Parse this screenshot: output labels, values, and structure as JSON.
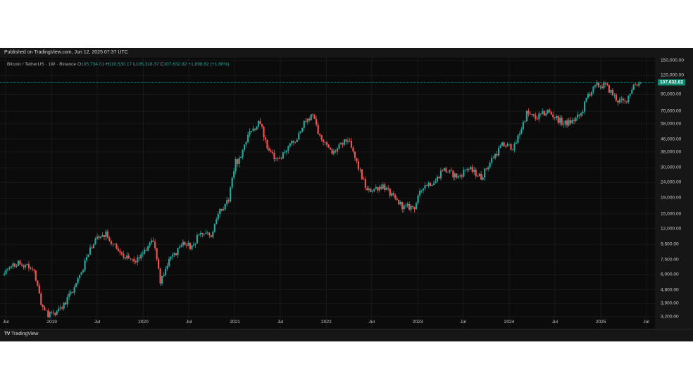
{
  "header": {
    "published": "Published on TradingView.com, Jun 12, 2025 07:37 UTC"
  },
  "legend": {
    "symbol": "Bitcoin / TetherUS · 1W · Binance",
    "open_label": "O",
    "open": "105,734.01",
    "high_label": "H",
    "high": "110,530.17",
    "low_label": "L",
    "low": "105,318.37",
    "close_label": "C",
    "close": "107,632.82",
    "change": "+1,898.82 (+1.80%)"
  },
  "last_price_label": "107,632.82",
  "footer": {
    "brand": "TradingView",
    "logo_text": "TV"
  },
  "colors": {
    "up": "#26a69a",
    "down": "#ef5350",
    "background": "#0b0b0b",
    "price_line": "#26a69a"
  },
  "chart_data": {
    "type": "candlestick",
    "title": "",
    "yscale": "log",
    "ylim": [
      2700,
      150000
    ],
    "last_price": 107632.82,
    "y_tick_labels": [
      "150,000.00",
      "120,000.00",
      "90,000.00",
      "70,000.00",
      "58,000.00",
      "46,000.00",
      "38,000.00",
      "30,000.00",
      "24,000.00",
      "19,000.00",
      "15,000.00",
      "12,000.00",
      "9,500.00",
      "7,500.00",
      "6,000.00",
      "4,800.00",
      "3,900.00",
      "3,200.00"
    ],
    "y_tick_values": [
      150000,
      120000,
      90000,
      70000,
      58000,
      46000,
      38000,
      30000,
      24000,
      19000,
      15000,
      12000,
      9500,
      7500,
      6000,
      4800,
      3900,
      3200
    ],
    "x_tick_labels": [
      "Jul",
      "2019",
      "Jul",
      "2020",
      "Jul",
      "2021",
      "Jul",
      "2022",
      "Jul",
      "2023",
      "Jul",
      "2024",
      "Jul",
      "2025",
      "Jul"
    ],
    "x_tick_dates": [
      "2018-07-01",
      "2019-01-01",
      "2019-07-01",
      "2020-01-01",
      "2020-07-01",
      "2021-01-01",
      "2021-07-01",
      "2022-01-01",
      "2022-07-01",
      "2023-01-01",
      "2023-07-01",
      "2024-01-01",
      "2024-07-01",
      "2025-01-01",
      "2025-07-01"
    ],
    "series": {
      "start_week": "2018-06-25",
      "anchor_dates": [
        "2018-06-25",
        "2018-08-20",
        "2018-10-22",
        "2018-11-19",
        "2018-12-17",
        "2019-02-11",
        "2019-04-08",
        "2019-06-24",
        "2019-08-05",
        "2019-10-07",
        "2019-11-25",
        "2020-02-10",
        "2020-03-09",
        "2020-04-06",
        "2020-06-01",
        "2020-07-13",
        "2020-08-17",
        "2020-09-28",
        "2020-11-02",
        "2020-12-07",
        "2021-01-04",
        "2021-01-25",
        "2021-02-22",
        "2021-04-12",
        "2021-05-17",
        "2021-06-28",
        "2021-07-26",
        "2021-09-06",
        "2021-10-04",
        "2021-11-08",
        "2021-12-06",
        "2022-01-24",
        "2022-03-28",
        "2022-05-09",
        "2022-06-13",
        "2022-08-15",
        "2022-09-26",
        "2022-11-07",
        "2022-12-19",
        "2023-01-23",
        "2023-03-13",
        "2023-04-10",
        "2023-06-12",
        "2023-07-17",
        "2023-09-11",
        "2023-10-23",
        "2023-12-04",
        "2024-01-22",
        "2024-03-11",
        "2024-04-15",
        "2024-06-03",
        "2024-08-05",
        "2024-09-09",
        "2024-10-14",
        "2024-11-11",
        "2024-12-16",
        "2025-01-20",
        "2025-03-10",
        "2025-04-07",
        "2025-05-12",
        "2025-06-09"
      ],
      "anchor_closes": [
        6200,
        7200,
        6400,
        4000,
        3300,
        3600,
        5200,
        10500,
        11000,
        8200,
        7200,
        10100,
        5400,
        7000,
        9500,
        9200,
        11500,
        10800,
        15500,
        19000,
        33000,
        34000,
        50000,
        60000,
        37000,
        34000,
        40000,
        46000,
        60000,
        65000,
        48000,
        37000,
        46000,
        30000,
        21000,
        23000,
        19000,
        16500,
        16700,
        23000,
        24500,
        29500,
        26000,
        30000,
        26000,
        34000,
        42000,
        41000,
        68000,
        63000,
        70000,
        58000,
        60000,
        67000,
        90000,
        103000,
        103000,
        82000,
        80000,
        104000,
        107632.82
      ],
      "seed": 20180625
    }
  }
}
